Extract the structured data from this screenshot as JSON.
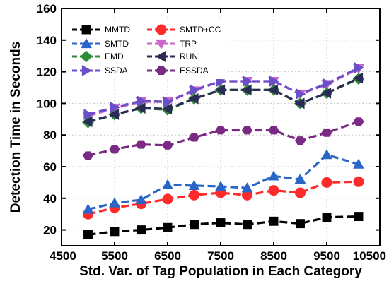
{
  "chart_data": {
    "type": "line",
    "xlabel": "Std. Var. of Tag Population in Each Category",
    "ylabel": "Detection Time in Seconds",
    "xlim": [
      4500,
      10500
    ],
    "ylim": [
      10,
      160
    ],
    "x_ticks": [
      4500,
      5500,
      6500,
      7500,
      8500,
      9500,
      10500
    ],
    "y_ticks": [
      20,
      40,
      60,
      80,
      100,
      120,
      140,
      160
    ],
    "grid": true,
    "legend_position": "top-left",
    "x": [
      5000,
      5500,
      6000,
      6500,
      7000,
      7500,
      8000,
      8500,
      9000,
      9500,
      10100
    ],
    "series": [
      {
        "name": "MMTD",
        "color": "#000000",
        "marker": "square",
        "dash": "dashed",
        "values": [
          17,
          19,
          20,
          21.5,
          23.5,
          24.5,
          23.5,
          25.5,
          24,
          28,
          28.5
        ]
      },
      {
        "name": "SMTD+CC",
        "color": "#ff2a2a",
        "marker": "circle",
        "dash": "dashed",
        "values": [
          30,
          34,
          36.5,
          39.5,
          42,
          43.5,
          42,
          45,
          43.5,
          50,
          50.5
        ]
      },
      {
        "name": "SMTD",
        "color": "#2a66c8",
        "marker": "triangle-up",
        "dash": "dashed",
        "values": [
          33,
          37,
          39,
          48.5,
          48,
          47.5,
          46.5,
          54,
          52,
          67.5,
          61.5
        ]
      },
      {
        "name": "TRP",
        "color": "#cc66cc",
        "marker": "triangle-down",
        "dash": "dashed",
        "values": [
          92,
          97,
          101,
          101,
          108,
          114,
          114,
          114,
          106,
          112,
          122
        ]
      },
      {
        "name": "EMD",
        "color": "#2e8b3a",
        "marker": "diamond",
        "dash": "dashed",
        "values": [
          88,
          93,
          97,
          96,
          103,
          108.5,
          108.5,
          108.5,
          100,
          106.5,
          115.5
        ]
      },
      {
        "name": "RUN",
        "color": "#2b2b55",
        "marker": "triangle-left",
        "dash": "dashed",
        "values": [
          88.5,
          93,
          97,
          96.5,
          103,
          108.5,
          108.5,
          108.5,
          100,
          106.5,
          116
        ]
      },
      {
        "name": "SSDA",
        "color": "#6a4fc8",
        "marker": "triangle-right",
        "dash": "dashed",
        "values": [
          93,
          97.5,
          101.5,
          101,
          108.5,
          114,
          114,
          114,
          106,
          112.5,
          122.5
        ]
      },
      {
        "name": "ESSDA",
        "color": "#7a2a82",
        "marker": "hexagon",
        "dash": "dashed",
        "values": [
          67,
          71,
          74,
          73.5,
          78.5,
          83,
          83,
          83,
          76.5,
          81.5,
          88.5
        ]
      }
    ]
  }
}
